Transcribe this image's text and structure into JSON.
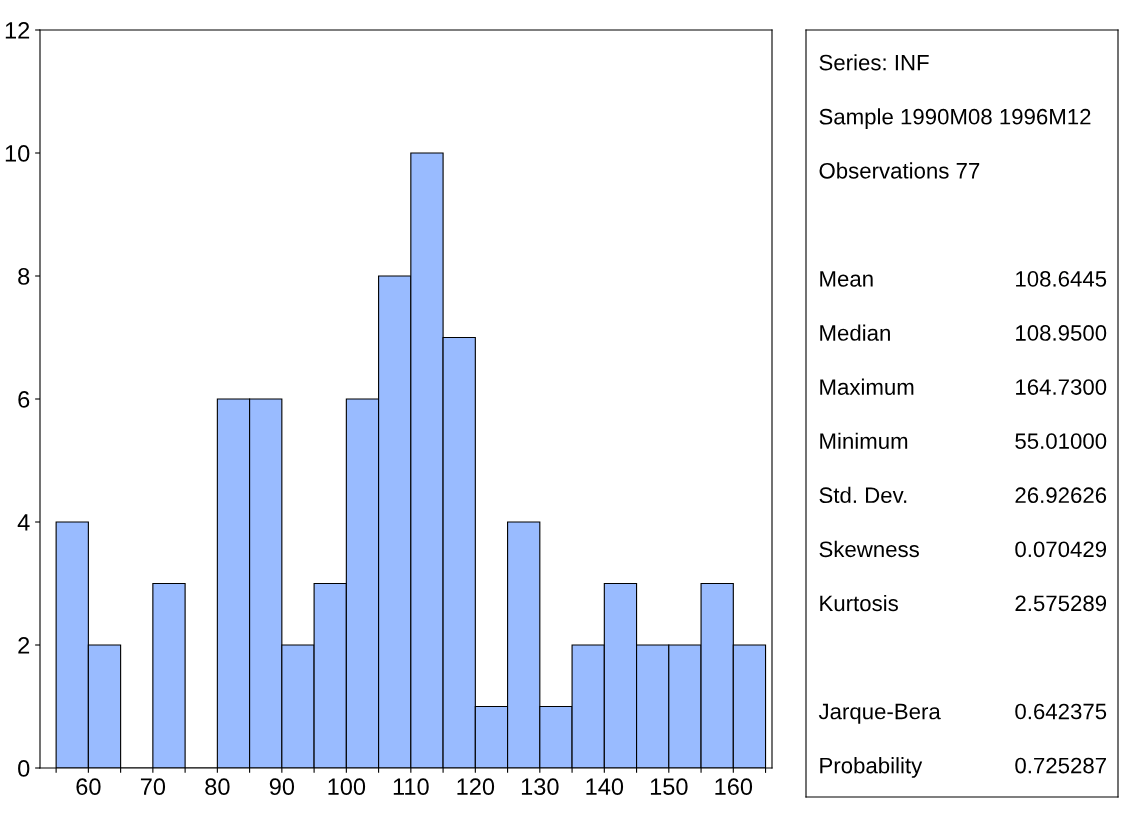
{
  "chart_data": {
    "type": "histogram",
    "bins": [
      55,
      60,
      65,
      70,
      75,
      80,
      85,
      90,
      95,
      100,
      105,
      110,
      115,
      120,
      125,
      130,
      135,
      140,
      145,
      150,
      155,
      160,
      165
    ],
    "values": [
      4,
      2,
      0,
      3,
      0,
      6,
      6,
      2,
      3,
      6,
      8,
      10,
      7,
      1,
      4,
      1,
      2,
      3,
      2,
      2,
      3,
      2
    ],
    "color": "#99bbff",
    "xlim": [
      52.5,
      166
    ],
    "xticks": [
      {
        "value": 55,
        "label": null
      },
      60,
      {
        "value": 65,
        "label": null
      },
      70,
      {
        "value": 75,
        "label": null
      },
      80,
      {
        "value": 85,
        "label": null
      },
      90,
      {
        "value": 95,
        "label": null
      },
      100,
      {
        "value": 105,
        "label": null
      },
      110,
      {
        "value": 115,
        "label": null
      },
      120,
      {
        "value": 125,
        "label": null
      },
      130,
      {
        "value": 135,
        "label": null
      },
      140,
      {
        "value": 145,
        "label": null
      },
      150,
      {
        "value": 155,
        "label": null
      },
      160,
      {
        "value": 165,
        "label": null
      }
    ],
    "ylim": [
      0,
      12
    ],
    "yticks": [
      0,
      2,
      4,
      6,
      8,
      10,
      12
    ],
    "grid": false,
    "annotations": [
      "Series: INF",
      "Sample 1990M08 1996M12",
      "Observations 77",
      "Mean\t108.6445",
      "Median\t108.9500",
      "Maximum\t164.7300",
      "Minimum\t55.01000",
      "Std. Dev.\t26.92626",
      "Skewness\t0.070429",
      "Kurtosis\t2.575289",
      "Jarque-Bera\t0.642375",
      "Probability\t0.725287"
    ]
  }
}
